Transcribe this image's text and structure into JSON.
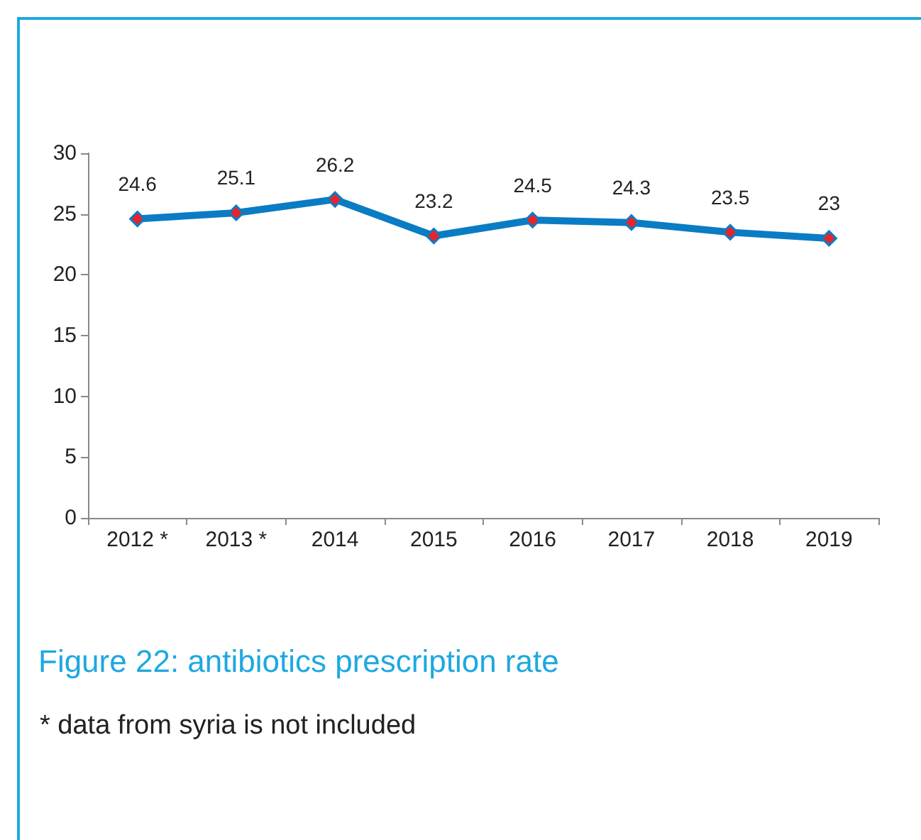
{
  "chart_data": {
    "type": "line",
    "title": "Figure 22: antibiotics prescription rate",
    "annotations": [
      "* data from syria is not included"
    ],
    "categories": [
      "2012 *",
      "2013 *",
      "2014",
      "2015",
      "2016",
      "2017",
      "2018",
      "2019"
    ],
    "series": [
      {
        "color": "#0a7cc4",
        "values": [
          24.6,
          25.1,
          26.2,
          23.2,
          24.5,
          24.3,
          23.5,
          23
        ]
      }
    ],
    "ylim": [
      0,
      30
    ],
    "yticks": [
      0,
      5,
      10,
      15,
      20,
      25,
      30
    ],
    "grid": false,
    "marker": "diamond",
    "data_labels": true
  }
}
